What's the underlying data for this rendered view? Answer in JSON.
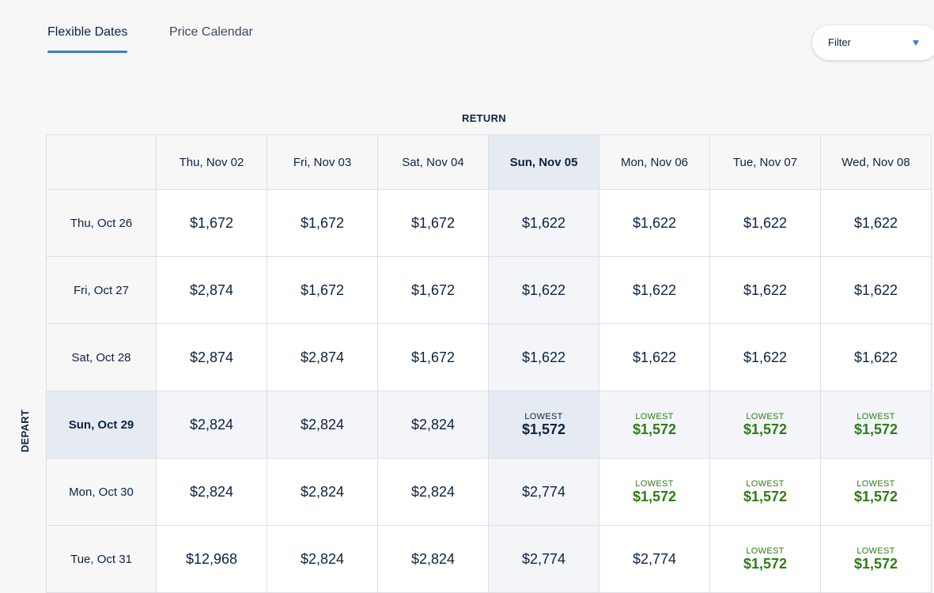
{
  "tabs": {
    "flexible": "Flexible Dates",
    "calendar": "Price Calendar"
  },
  "filter": {
    "label": "Filter"
  },
  "axis": {
    "return_label": "RETURN",
    "depart_label": "DEPART"
  },
  "lowest_label": "LOWEST",
  "columns": [
    "Thu, Nov 02",
    "Fri, Nov 03",
    "Sat, Nov 04",
    "Sun, Nov 05",
    "Mon, Nov 06",
    "Tue, Nov 07",
    "Wed, Nov 08"
  ],
  "selected_column": 3,
  "selected_row": 3,
  "rows": [
    {
      "date": "Thu, Oct 26",
      "prices": [
        "$1,672",
        "$1,672",
        "$1,672",
        "$1,622",
        "$1,622",
        "$1,622",
        "$1,622"
      ],
      "lowest": [
        false,
        false,
        false,
        false,
        false,
        false,
        false
      ]
    },
    {
      "date": "Fri, Oct 27",
      "prices": [
        "$2,874",
        "$1,672",
        "$1,672",
        "$1,622",
        "$1,622",
        "$1,622",
        "$1,622"
      ],
      "lowest": [
        false,
        false,
        false,
        false,
        false,
        false,
        false
      ]
    },
    {
      "date": "Sat, Oct 28",
      "prices": [
        "$2,874",
        "$2,874",
        "$1,672",
        "$1,622",
        "$1,622",
        "$1,622",
        "$1,622"
      ],
      "lowest": [
        false,
        false,
        false,
        false,
        false,
        false,
        false
      ]
    },
    {
      "date": "Sun, Oct 29",
      "prices": [
        "$2,824",
        "$2,824",
        "$2,824",
        "$1,572",
        "$1,572",
        "$1,572",
        "$1,572"
      ],
      "lowest": [
        false,
        false,
        false,
        true,
        true,
        true,
        true
      ]
    },
    {
      "date": "Mon, Oct 30",
      "prices": [
        "$2,824",
        "$2,824",
        "$2,824",
        "$2,774",
        "$1,572",
        "$1,572",
        "$1,572"
      ],
      "lowest": [
        false,
        false,
        false,
        false,
        true,
        true,
        true
      ]
    },
    {
      "date": "Tue, Oct 31",
      "prices": [
        "$12,968",
        "$2,824",
        "$2,824",
        "$2,774",
        "$2,774",
        "$1,572",
        "$1,572"
      ],
      "lowest": [
        false,
        false,
        false,
        false,
        false,
        true,
        true
      ]
    }
  ]
}
